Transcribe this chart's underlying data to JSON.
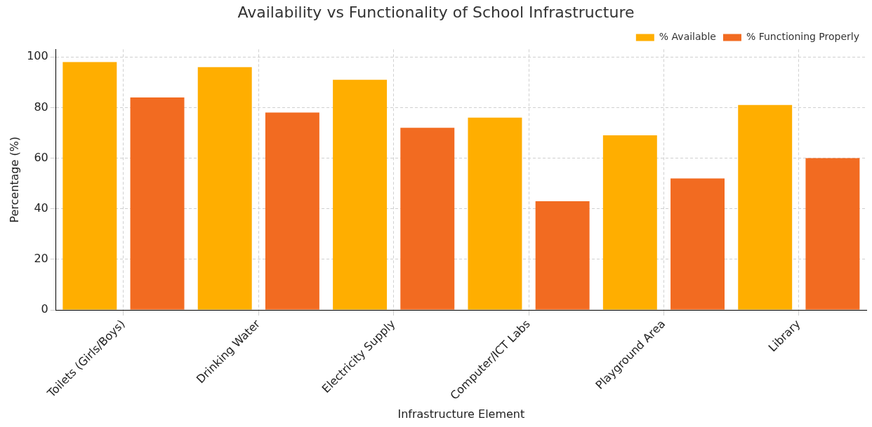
{
  "chart_data": {
    "type": "bar",
    "title": "Availability vs Functionality of School Infrastructure",
    "xlabel": "Infrastructure Element",
    "ylabel": "Percentage (%)",
    "categories": [
      "Toilets (Girls/Boys)",
      "Drinking Water",
      "Electricity Supply",
      "Computer/ICT Labs",
      "Playground Area",
      "Library"
    ],
    "series": [
      {
        "name": "% Available",
        "color": "#ffae00",
        "values": [
          98,
          96,
          91,
          76,
          69,
          81
        ]
      },
      {
        "name": "% Functioning Properly",
        "color": "#f26b21",
        "values": [
          84,
          78,
          72,
          43,
          52,
          60
        ]
      }
    ],
    "ylim": [
      0,
      103
    ],
    "yticks": [
      0,
      20,
      40,
      60,
      80,
      100
    ],
    "grid": true,
    "legend": "top right"
  }
}
